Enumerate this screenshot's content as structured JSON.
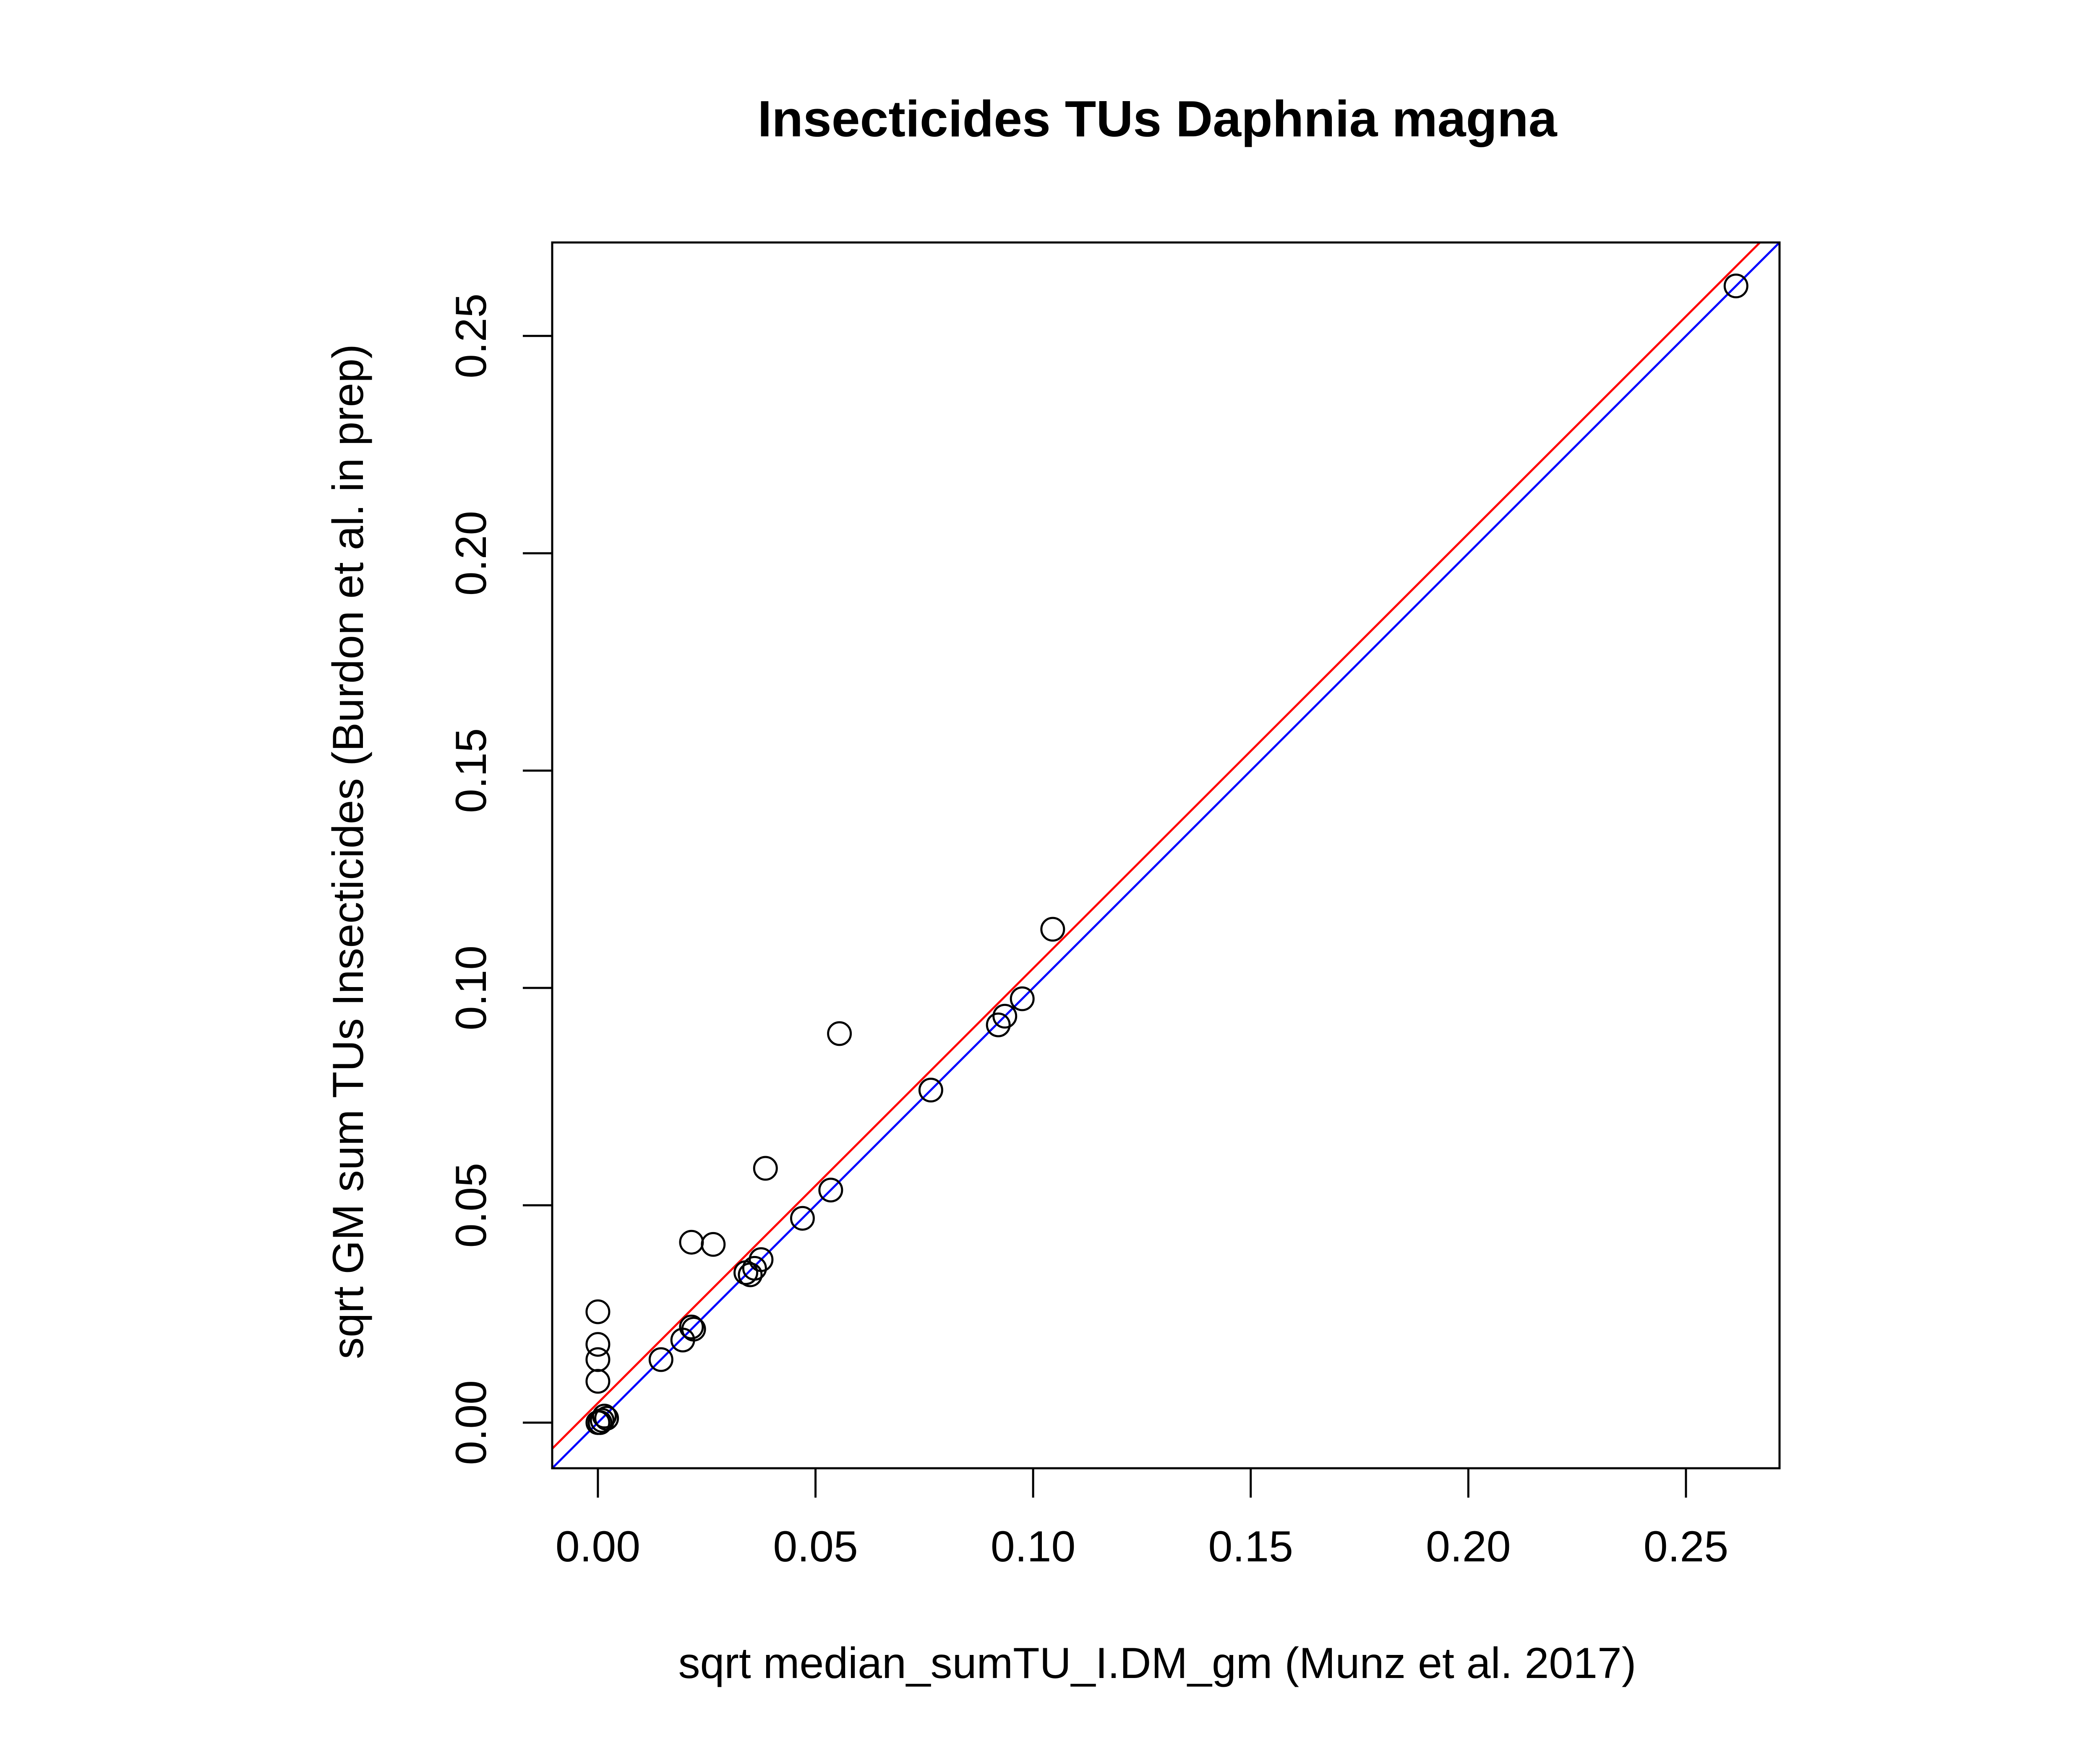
{
  "chart_data": {
    "type": "scatter",
    "title": "Insecticides TUs Daphnia magna",
    "xlabel": "sqrt median_sumTU_I.DM_gm (Munz et al. 2017)",
    "ylabel": "sqrt GM sum TUs Insecticides (Burdon et al. in prep)",
    "xlim": [
      -0.0105,
      0.2715
    ],
    "ylim": [
      -0.0105,
      0.2715
    ],
    "xticks": [
      0.0,
      0.05,
      0.1,
      0.15,
      0.2,
      0.25
    ],
    "yticks": [
      0.0,
      0.05,
      0.1,
      0.15,
      0.2,
      0.25
    ],
    "xtick_labels": [
      "0.00",
      "0.05",
      "0.10",
      "0.15",
      "0.20",
      "0.25"
    ],
    "ytick_labels": [
      "0.00",
      "0.05",
      "0.10",
      "0.15",
      "0.20",
      "0.25"
    ],
    "grid": false,
    "legend": false,
    "points": [
      {
        "x": 0.0,
        "y": 0.0
      },
      {
        "x": 0.0005,
        "y": 0.0
      },
      {
        "x": 0.001,
        "y": 0.0005
      },
      {
        "x": 0.0015,
        "y": 0.0015
      },
      {
        "x": 0.002,
        "y": 0.001
      },
      {
        "x": 0.0,
        "y": 0.0095
      },
      {
        "x": 0.0,
        "y": 0.0145
      },
      {
        "x": 0.0,
        "y": 0.018
      },
      {
        "x": 0.0,
        "y": 0.0255
      },
      {
        "x": 0.0145,
        "y": 0.0145
      },
      {
        "x": 0.0195,
        "y": 0.019
      },
      {
        "x": 0.0215,
        "y": 0.022
      },
      {
        "x": 0.022,
        "y": 0.0215
      },
      {
        "x": 0.0215,
        "y": 0.0415
      },
      {
        "x": 0.0265,
        "y": 0.041
      },
      {
        "x": 0.034,
        "y": 0.0345
      },
      {
        "x": 0.035,
        "y": 0.034
      },
      {
        "x": 0.036,
        "y": 0.0355
      },
      {
        "x": 0.0375,
        "y": 0.0375
      },
      {
        "x": 0.0385,
        "y": 0.0585
      },
      {
        "x": 0.047,
        "y": 0.047
      },
      {
        "x": 0.0535,
        "y": 0.0535
      },
      {
        "x": 0.0555,
        "y": 0.0895
      },
      {
        "x": 0.0765,
        "y": 0.0765
      },
      {
        "x": 0.092,
        "y": 0.0915
      },
      {
        "x": 0.0935,
        "y": 0.0935
      },
      {
        "x": 0.0975,
        "y": 0.0975
      },
      {
        "x": 0.1045,
        "y": 0.1135
      },
      {
        "x": 0.2615,
        "y": 0.2615
      }
    ],
    "lines": [
      {
        "color": "#ff0000",
        "intercept": 0.0045,
        "slope": 1.0
      },
      {
        "color": "#0000ff",
        "intercept": 0.0,
        "slope": 1.0
      }
    ],
    "colors": {
      "points": "#000000",
      "frame": "#000000"
    }
  }
}
